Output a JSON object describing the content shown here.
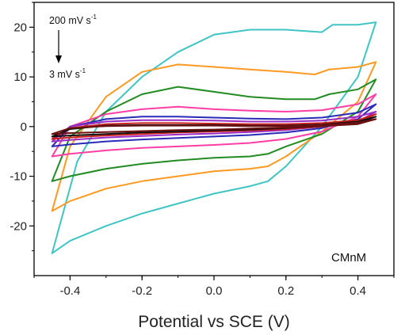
{
  "chart_data": {
    "type": "line",
    "xlabel": "Potential vs SCE (V)",
    "ylabel": "",
    "xlim": [
      -0.5,
      0.5
    ],
    "ylim": [
      -30,
      25
    ],
    "x_ticks": [
      -0.4,
      -0.2,
      0.0,
      0.2,
      0.4
    ],
    "x_tick_labels": [
      "-0.4",
      "-0.2",
      "0.0",
      "0.2",
      "0.4"
    ],
    "y_ticks": [
      -20,
      -10,
      0,
      10,
      20
    ],
    "y_tick_labels": [
      "-20",
      "-10",
      "0",
      "10",
      "20"
    ],
    "grid": false,
    "annotation_top": "200 mV s",
    "annotation_bottom": "3 mV s",
    "annotation_superscript": "-1",
    "sample_label": "CMnM",
    "series": [
      {
        "color": "#40c4c4",
        "upper": [
          [
            -0.45,
            -25.5
          ],
          [
            -0.38,
            -7
          ],
          [
            -0.3,
            3
          ],
          [
            -0.2,
            10
          ],
          [
            -0.1,
            15
          ],
          [
            0.0,
            18.5
          ],
          [
            0.1,
            19.5
          ],
          [
            0.2,
            19.5
          ],
          [
            0.3,
            19
          ],
          [
            0.33,
            20.5
          ],
          [
            0.4,
            20.5
          ],
          [
            0.45,
            21
          ]
        ],
        "lower": [
          [
            -0.45,
            -25.5
          ],
          [
            -0.4,
            -23
          ],
          [
            -0.3,
            -20
          ],
          [
            -0.2,
            -17.5
          ],
          [
            -0.1,
            -15.5
          ],
          [
            0.0,
            -13.5
          ],
          [
            0.1,
            -12
          ],
          [
            0.15,
            -11
          ],
          [
            0.2,
            -8
          ],
          [
            0.3,
            0
          ],
          [
            0.4,
            10
          ],
          [
            0.45,
            21
          ]
        ]
      },
      {
        "color": "#ff9922",
        "upper": [
          [
            -0.45,
            -17
          ],
          [
            -0.4,
            -4
          ],
          [
            -0.3,
            6
          ],
          [
            -0.2,
            11
          ],
          [
            -0.1,
            12.5
          ],
          [
            0.0,
            12
          ],
          [
            0.1,
            11.5
          ],
          [
            0.2,
            11
          ],
          [
            0.28,
            10.5
          ],
          [
            0.32,
            11.5
          ],
          [
            0.4,
            12
          ],
          [
            0.45,
            13
          ]
        ],
        "lower": [
          [
            -0.45,
            -17
          ],
          [
            -0.4,
            -15
          ],
          [
            -0.3,
            -12.5
          ],
          [
            -0.2,
            -11
          ],
          [
            -0.1,
            -10
          ],
          [
            0.0,
            -9
          ],
          [
            0.1,
            -8.5
          ],
          [
            0.15,
            -8
          ],
          [
            0.2,
            -6
          ],
          [
            0.3,
            -1
          ],
          [
            0.4,
            5
          ],
          [
            0.45,
            13
          ]
        ]
      },
      {
        "color": "#228b22",
        "upper": [
          [
            -0.45,
            -11
          ],
          [
            -0.4,
            -2
          ],
          [
            -0.3,
            3
          ],
          [
            -0.2,
            6.5
          ],
          [
            -0.1,
            8
          ],
          [
            0.0,
            7
          ],
          [
            0.1,
            6
          ],
          [
            0.2,
            5.5
          ],
          [
            0.28,
            5.5
          ],
          [
            0.32,
            6.5
          ],
          [
            0.4,
            7.5
          ],
          [
            0.45,
            9.5
          ]
        ],
        "lower": [
          [
            -0.45,
            -11
          ],
          [
            -0.4,
            -10
          ],
          [
            -0.3,
            -8.5
          ],
          [
            -0.2,
            -7.5
          ],
          [
            -0.1,
            -6.8
          ],
          [
            0.0,
            -6.3
          ],
          [
            0.1,
            -6
          ],
          [
            0.15,
            -5.5
          ],
          [
            0.2,
            -4
          ],
          [
            0.3,
            -1.5
          ],
          [
            0.4,
            3
          ],
          [
            0.45,
            9.5
          ]
        ]
      },
      {
        "color": "#ff3ea5",
        "upper": [
          [
            -0.45,
            -6
          ],
          [
            -0.4,
            0
          ],
          [
            -0.3,
            2.5
          ],
          [
            -0.2,
            3.5
          ],
          [
            -0.1,
            4
          ],
          [
            0.0,
            3.5
          ],
          [
            0.1,
            3.2
          ],
          [
            0.2,
            3
          ],
          [
            0.3,
            3.3
          ],
          [
            0.4,
            4.5
          ],
          [
            0.45,
            6.5
          ]
        ],
        "lower": [
          [
            -0.45,
            -6
          ],
          [
            -0.4,
            -5.5
          ],
          [
            -0.3,
            -4.8
          ],
          [
            -0.2,
            -4.3
          ],
          [
            -0.1,
            -4
          ],
          [
            0.0,
            -3.7
          ],
          [
            0.1,
            -3.3
          ],
          [
            0.2,
            -2.5
          ],
          [
            0.3,
            -1
          ],
          [
            0.4,
            2
          ],
          [
            0.45,
            6.5
          ]
        ]
      },
      {
        "color": "#2a2ab8",
        "upper": [
          [
            -0.45,
            -4
          ],
          [
            -0.4,
            0
          ],
          [
            -0.3,
            1.5
          ],
          [
            -0.2,
            2
          ],
          [
            -0.1,
            2
          ],
          [
            0.0,
            1.8
          ],
          [
            0.1,
            1.6
          ],
          [
            0.2,
            1.5
          ],
          [
            0.3,
            1.8
          ],
          [
            0.4,
            2.8
          ],
          [
            0.45,
            4.5
          ]
        ],
        "lower": [
          [
            -0.45,
            -4
          ],
          [
            -0.4,
            -3.6
          ],
          [
            -0.3,
            -3
          ],
          [
            -0.2,
            -2.6
          ],
          [
            -0.1,
            -2.3
          ],
          [
            0.0,
            -2
          ],
          [
            0.1,
            -1.7
          ],
          [
            0.2,
            -1.2
          ],
          [
            0.3,
            -0.3
          ],
          [
            0.4,
            1.5
          ],
          [
            0.45,
            4.5
          ]
        ]
      },
      {
        "color": "#9b2cc4",
        "upper": [
          [
            -0.45,
            -3
          ],
          [
            -0.4,
            0
          ],
          [
            -0.3,
            1
          ],
          [
            -0.2,
            1.3
          ],
          [
            -0.1,
            1.3
          ],
          [
            0.0,
            1.2
          ],
          [
            0.1,
            1
          ],
          [
            0.2,
            1
          ],
          [
            0.3,
            1.2
          ],
          [
            0.4,
            2
          ],
          [
            0.45,
            3
          ]
        ],
        "lower": [
          [
            -0.45,
            -3
          ],
          [
            -0.4,
            -2.7
          ],
          [
            -0.3,
            -2.2
          ],
          [
            -0.2,
            -1.9
          ],
          [
            -0.1,
            -1.6
          ],
          [
            0.0,
            -1.4
          ],
          [
            0.1,
            -1.1
          ],
          [
            0.2,
            -0.7
          ],
          [
            0.3,
            0
          ],
          [
            0.4,
            1
          ],
          [
            0.45,
            3
          ]
        ]
      },
      {
        "color": "#cc1f1f",
        "upper": [
          [
            -0.45,
            -2.5
          ],
          [
            -0.4,
            -0.3
          ],
          [
            -0.3,
            0.5
          ],
          [
            -0.2,
            0.7
          ],
          [
            -0.1,
            0.7
          ],
          [
            0.0,
            0.6
          ],
          [
            0.1,
            0.5
          ],
          [
            0.2,
            0.5
          ],
          [
            0.3,
            0.7
          ],
          [
            0.4,
            1.3
          ],
          [
            0.45,
            2.5
          ]
        ],
        "lower": [
          [
            -0.45,
            -2.5
          ],
          [
            -0.4,
            -2.2
          ],
          [
            -0.3,
            -1.8
          ],
          [
            -0.2,
            -1.5
          ],
          [
            -0.1,
            -1.2
          ],
          [
            0.0,
            -1
          ],
          [
            0.1,
            -0.8
          ],
          [
            0.2,
            -0.5
          ],
          [
            0.3,
            0
          ],
          [
            0.4,
            0.8
          ],
          [
            0.45,
            2.5
          ]
        ]
      },
      {
        "color": "#111111",
        "upper": [
          [
            -0.45,
            -2
          ],
          [
            -0.4,
            -0.5
          ],
          [
            -0.3,
            0.2
          ],
          [
            -0.2,
            0.3
          ],
          [
            -0.1,
            0.3
          ],
          [
            0.0,
            0.3
          ],
          [
            0.1,
            0.2
          ],
          [
            0.2,
            0.2
          ],
          [
            0.3,
            0.4
          ],
          [
            0.4,
            1
          ],
          [
            0.45,
            2
          ]
        ],
        "lower": [
          [
            -0.45,
            -2
          ],
          [
            -0.4,
            -1.8
          ],
          [
            -0.3,
            -1.5
          ],
          [
            -0.2,
            -1.2
          ],
          [
            -0.1,
            -1
          ],
          [
            0.0,
            -0.8
          ],
          [
            0.1,
            -0.6
          ],
          [
            0.2,
            -0.3
          ],
          [
            0.3,
            0.1
          ],
          [
            0.4,
            0.7
          ],
          [
            0.45,
            2
          ]
        ]
      },
      {
        "color": "#6b1010",
        "upper": [
          [
            -0.45,
            -1.5
          ],
          [
            -0.4,
            -0.3
          ],
          [
            -0.3,
            0.1
          ],
          [
            -0.2,
            0.2
          ],
          [
            -0.1,
            0.2
          ],
          [
            0.0,
            0.2
          ],
          [
            0.1,
            0.1
          ],
          [
            0.2,
            0.1
          ],
          [
            0.3,
            0.3
          ],
          [
            0.4,
            0.8
          ],
          [
            0.45,
            1.5
          ]
        ],
        "lower": [
          [
            -0.45,
            -1.5
          ],
          [
            -0.4,
            -1.3
          ],
          [
            -0.3,
            -1.1
          ],
          [
            -0.2,
            -0.9
          ],
          [
            -0.1,
            -0.7
          ],
          [
            0.0,
            -0.6
          ],
          [
            0.1,
            -0.4
          ],
          [
            0.2,
            -0.2
          ],
          [
            0.3,
            0.1
          ],
          [
            0.4,
            0.5
          ],
          [
            0.45,
            1.5
          ]
        ]
      }
    ]
  }
}
